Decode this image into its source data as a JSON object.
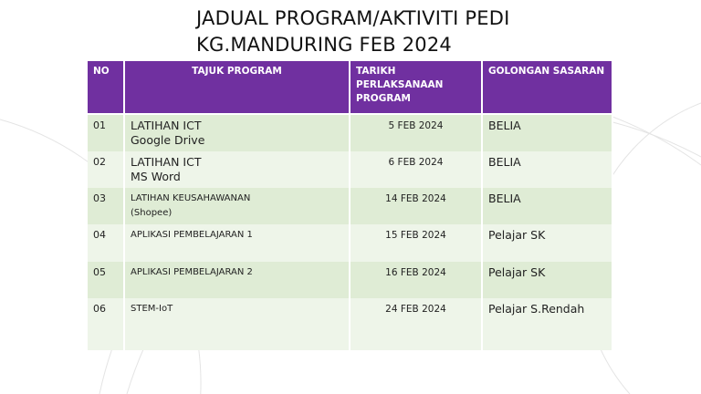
{
  "title": {
    "line1": "JADUAL PROGRAM/AKTIVITI PEDI",
    "line2": "KG.MANDURING FEB 2024"
  },
  "table": {
    "headers": [
      "NO",
      "TAJUK PROGRAM",
      "TARIKH PERLAKSANAAN PROGRAM",
      "GOLONGAN SASARAN"
    ],
    "rows": [
      {
        "no": "01",
        "title1": "LATIHAN ICT",
        "title2": "Google Drive",
        "date": "5 FEB 2024",
        "target": "BELIA"
      },
      {
        "no": "02",
        "title1": "LATIHAN ICT",
        "title2": "MS Word",
        "date": "6 FEB 2024",
        "target": "BELIA"
      },
      {
        "no": "03",
        "title1": "LATIHAN KEUSAHAWANAN",
        "title2": "(Shopee)",
        "date": "14 FEB 2024",
        "target": "BELIA"
      },
      {
        "no": "04",
        "title1": "APLIKASI PEMBELAJARAN 1",
        "title2": "",
        "date": "15 FEB 2024",
        "target": "Pelajar SK"
      },
      {
        "no": "05",
        "title1": "APLIKASI PEMBELAJARAN 2",
        "title2": "",
        "date": "16 FEB 2024",
        "target": "Pelajar SK"
      },
      {
        "no": "06",
        "title1": "STEM-IoT",
        "title2": "",
        "date": "24 FEB 2024",
        "target": "Pelajar S.Rendah"
      }
    ]
  },
  "colors": {
    "header": "#7030a0",
    "row_odd": "#dfecd5",
    "row_even": "#eef5e9"
  }
}
